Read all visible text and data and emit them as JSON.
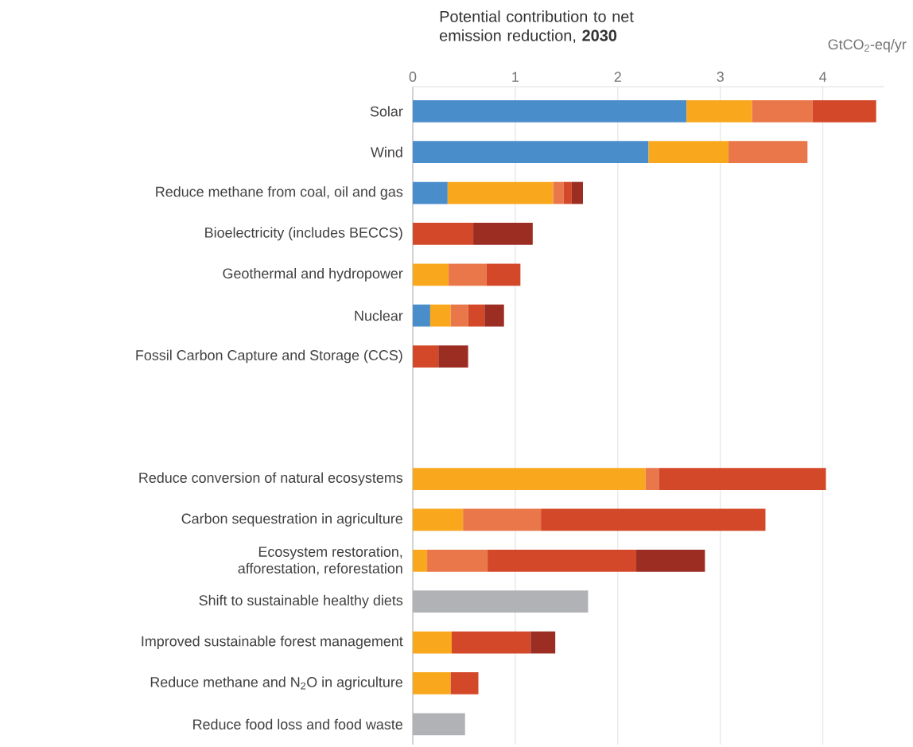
{
  "chart_data": {
    "type": "bar",
    "orientation": "horizontal",
    "stacked": true,
    "title": "Potential contribution to net emission reduction, **2030**",
    "xlabel": "GtCO$_{2}$-eq/yr",
    "categories": [
      "Solar",
      "Wind",
      "Reduce methane from coal, oil and gas",
      "Bioelectricity (includes BECCS)",
      "Geothermal and hydropower",
      "Nuclear",
      "Fossil Carbon Capture and Storage (CCS)",
      null,
      null,
      "Reduce conversion of natural ecosystems",
      "Carbon sequestration in agriculture",
      "Ecosystem restoration, afforestation, reforestation",
      "Shift to sustainable healthy diets",
      "Improved sustainable forest management",
      "Reduce methane and N$_{2}$O in agriculture",
      "Reduce food loss and food waste"
    ],
    "series": [
      {
        "color": "#4a8dcb",
        "values": [
          2.67,
          2.3,
          0.34,
          null,
          null,
          0.17,
          null,
          null,
          null,
          null,
          null,
          null,
          null,
          null,
          null,
          null
        ]
      },
      {
        "color": "#f9a81d",
        "values": [
          0.64,
          0.78,
          1.03,
          null,
          0.35,
          0.2,
          null,
          null,
          null,
          2.27,
          0.49,
          0.14,
          null,
          0.38,
          0.37,
          null
        ]
      },
      {
        "color": "#e9774a",
        "values": [
          0.59,
          0.77,
          0.1,
          null,
          0.37,
          0.17,
          null,
          null,
          null,
          0.13,
          0.76,
          0.59,
          null,
          null,
          null,
          null
        ]
      },
      {
        "color": "#d4482a",
        "values": [
          0.62,
          null,
          0.08,
          0.59,
          0.33,
          0.16,
          0.25,
          null,
          null,
          1.63,
          2.19,
          1.45,
          null,
          0.77,
          0.27,
          null
        ]
      },
      {
        "color": "#9b2d22",
        "values": [
          null,
          null,
          0.11,
          0.58,
          null,
          0.19,
          0.29,
          null,
          null,
          null,
          null,
          0.67,
          null,
          0.24,
          null,
          null
        ]
      },
      {
        "color": "#b1b2b6",
        "values": [
          null,
          null,
          null,
          null,
          null,
          null,
          null,
          null,
          null,
          null,
          null,
          null,
          1.71,
          null,
          null,
          0.51
        ]
      }
    ],
    "xlim": [
      0,
      4.6
    ],
    "xticks": [
      0,
      1,
      2,
      3,
      4
    ],
    "grid": "x"
  }
}
